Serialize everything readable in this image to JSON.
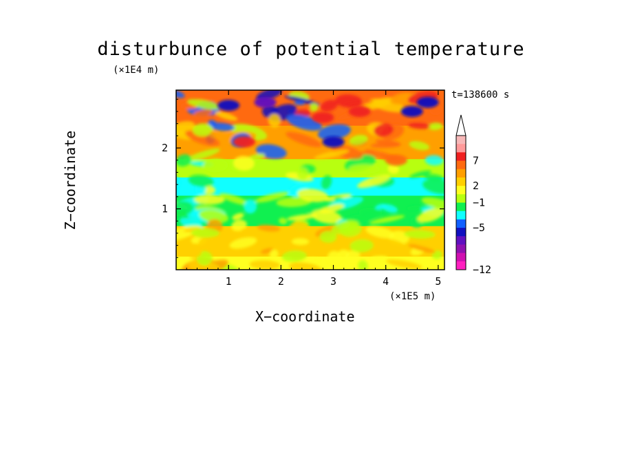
{
  "chart_data": {
    "type": "heatmap",
    "title": "disturbunce of potential temperature",
    "xlabel": "X−coordinate",
    "ylabel": "Z−coordinate",
    "x_unit": "(×1E5 m)",
    "y_unit": "(×1E4 m)",
    "time_label": "t=138600 s",
    "xlim": [
      0,
      5.12
    ],
    "ylim": [
      0,
      2.95
    ],
    "xticks": [
      1,
      2,
      3,
      4,
      5
    ],
    "yticks": [
      1,
      2
    ],
    "colorbar": {
      "labels": [
        {
          "value": 7,
          "text": "7"
        },
        {
          "value": 2,
          "text": "2"
        },
        {
          "value": -1,
          "text": "−1"
        },
        {
          "value": -5,
          "text": "−5"
        },
        {
          "value": -12,
          "text": "−12"
        }
      ],
      "bins": [
        {
          "color": "#f7b8b8"
        },
        {
          "color": "#ff9a9a"
        },
        {
          "color": "#f02020"
        },
        {
          "color": "#ff6a10"
        },
        {
          "color": "#ff9f00"
        },
        {
          "color": "#ffd000"
        },
        {
          "color": "#ffff20"
        },
        {
          "color": "#b8ff10"
        },
        {
          "color": "#10f050"
        },
        {
          "color": "#10ffff"
        },
        {
          "color": "#1060ff"
        },
        {
          "color": "#1010c0"
        },
        {
          "color": "#6010c0"
        },
        {
          "color": "#9010b0"
        },
        {
          "color": "#d010b0"
        },
        {
          "color": "#ff20c0"
        }
      ],
      "extend_top_arrow": true
    },
    "layers": [
      {
        "z_range": [
          0,
          0.25
        ],
        "dominant": "yellow-green",
        "color": "#ffff20"
      },
      {
        "z_range": [
          0.25,
          0.75
        ],
        "dominant": "yellow/orange",
        "color": "#ffd000"
      },
      {
        "z_range": [
          0.75,
          1.25
        ],
        "dominant": "green",
        "color": "#10f050"
      },
      {
        "z_range": [
          1.25,
          1.55
        ],
        "dominant": "cyan",
        "color": "#10ffff"
      },
      {
        "z_range": [
          1.55,
          1.85
        ],
        "dominant": "green/yellow",
        "color": "#b8ff10"
      },
      {
        "z_range": [
          1.85,
          2.4
        ],
        "dominant": "orange/red with blue streaks",
        "color": "#ff9f00"
      },
      {
        "z_range": [
          2.4,
          2.95
        ],
        "dominant": "orange/red with blue/purple patches",
        "color": "#ff6a10"
      }
    ],
    "features": [
      {
        "x": 1.0,
        "z": 2.7,
        "label": "blue-minimum",
        "color": "#1010c0"
      },
      {
        "x": 1.7,
        "z": 2.75,
        "label": "purple-minimum",
        "color": "#6010c0"
      },
      {
        "x": 3.0,
        "z": 2.1,
        "label": "blue-minimum",
        "color": "#1010c0"
      },
      {
        "x": 4.5,
        "z": 2.6,
        "label": "blue-minimum",
        "color": "#1010c0"
      },
      {
        "x": 4.8,
        "z": 2.75,
        "label": "blue-minimum",
        "color": "#1010c0"
      },
      {
        "x": 1.3,
        "z": 2.1,
        "label": "red-maximum",
        "color": "#f02020"
      },
      {
        "x": 2.8,
        "z": 2.5,
        "label": "red-maximum",
        "color": "#f02020"
      },
      {
        "x": 3.5,
        "z": 2.6,
        "label": "red-maximum",
        "color": "#f02020"
      },
      {
        "x": 4.2,
        "z": 1.8,
        "label": "orange-maximum",
        "color": "#ff6a10"
      }
    ],
    "grid": false,
    "legend": "colorbar-right"
  }
}
